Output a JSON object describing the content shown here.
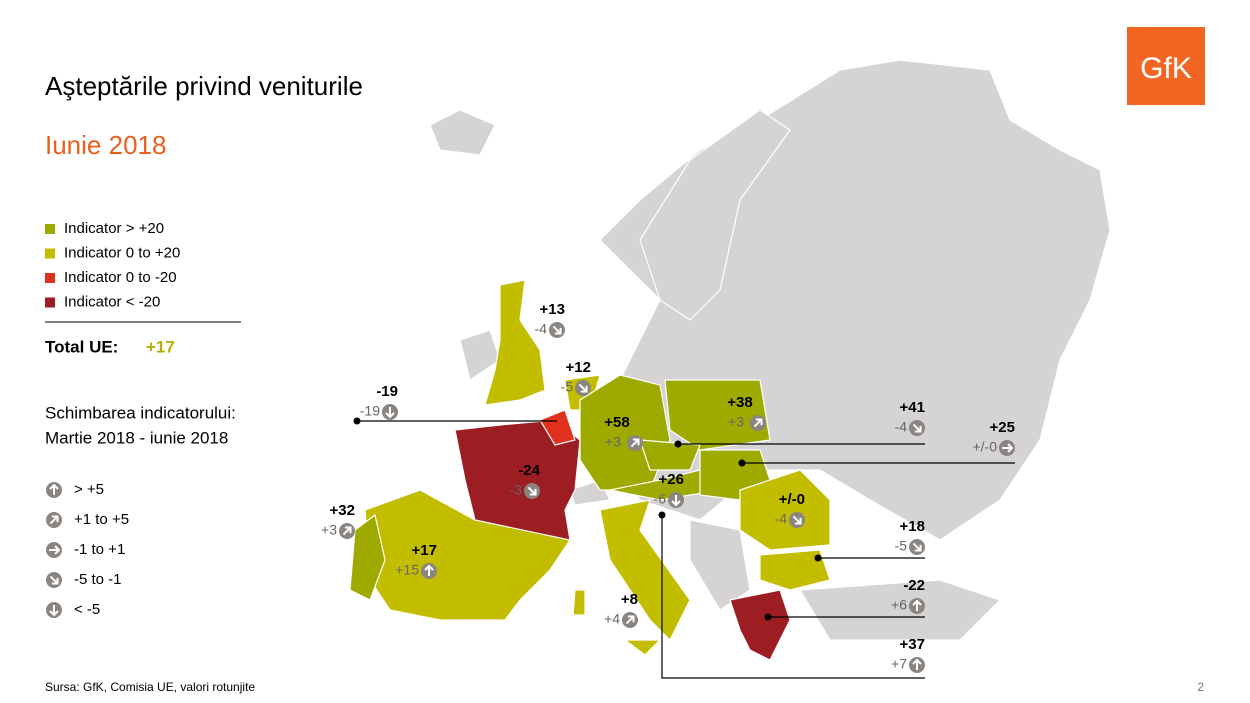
{
  "header": {
    "title": "Aşteptările privind veniturile",
    "subtitle": "Iunie 2018",
    "logo": "GfK"
  },
  "legend": {
    "items": [
      {
        "label": "Indicator > +20",
        "color": "#9eaa00"
      },
      {
        "label": "Indicator 0 to +20",
        "color": "#c3bd00"
      },
      {
        "label": "Indicator 0 to -20",
        "color": "#e0301e"
      },
      {
        "label": "Indicator < -20",
        "color": "#9c1d22"
      }
    ]
  },
  "total": {
    "label": "Total UE:",
    "value": "+17"
  },
  "change_legend": {
    "title": [
      "Schimbarea indicatorului:",
      "Martie 2018 - iunie 2018"
    ],
    "items": [
      "> +5",
      "+1 to +5",
      "-1 to +1",
      "-5 to -1",
      "< -5"
    ]
  },
  "countries": [
    {
      "value": "+13",
      "change": "-4"
    },
    {
      "value": "+12",
      "change": "-5"
    },
    {
      "value": "-19",
      "change": "-19"
    },
    {
      "value": "+58",
      "change": "+3"
    },
    {
      "value": "+38",
      "change": "+3"
    },
    {
      "value": "+41",
      "change": "-4"
    },
    {
      "value": "+25",
      "change": "+/-0"
    },
    {
      "value": "+26",
      "change": "-6"
    },
    {
      "value": "-24",
      "change": "-3"
    },
    {
      "value": "+32",
      "change": "+3"
    },
    {
      "value": "+17",
      "change": "+15"
    },
    {
      "value": "+/-0",
      "change": "-4"
    },
    {
      "value": "+18",
      "change": "-5"
    },
    {
      "value": "-22",
      "change": "+6"
    },
    {
      "value": "+8",
      "change": "+4"
    },
    {
      "value": "+37",
      "change": "+7"
    }
  ],
  "footer": {
    "source": "Sursa: GfK, Comisia UE, valori rotunjite",
    "page": "2"
  }
}
